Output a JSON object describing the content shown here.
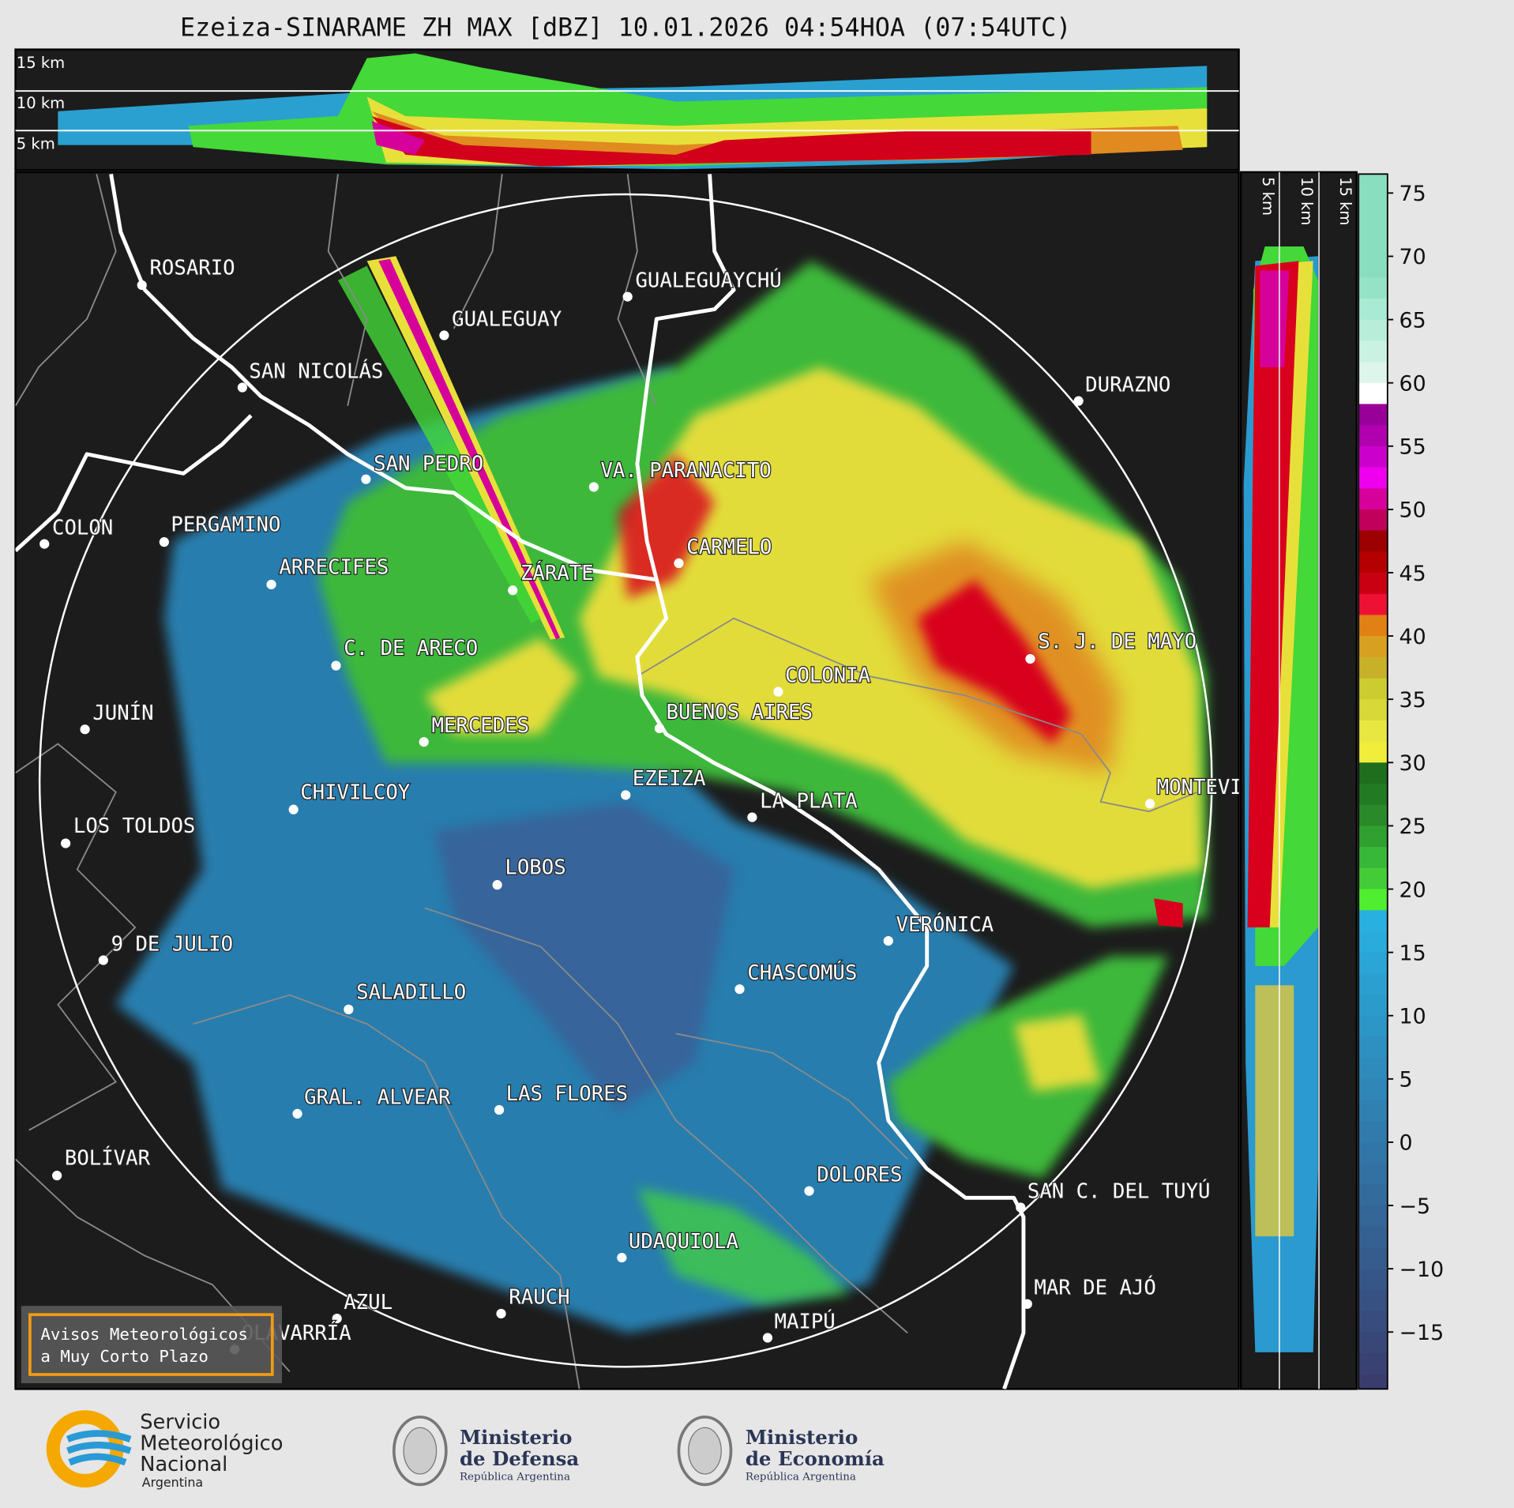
{
  "title": "Ezeiza-SINARAME ZH MAX [dBZ] 10.01.2026 04:54HOA (07:54UTC)",
  "top_panel": {
    "height_labels": [
      "15 km",
      "10 km",
      "5 km"
    ]
  },
  "side_panel": {
    "height_labels": [
      "5 km",
      "10 km",
      "15 km"
    ]
  },
  "colorbar": {
    "unit": "dBZ",
    "range": [
      -19.5,
      76.5
    ],
    "ticks": [
      "75",
      "70",
      "65",
      "60",
      "55",
      "50",
      "45",
      "40",
      "35",
      "30",
      "25",
      "20",
      "15",
      "10",
      "5",
      "0",
      "−5",
      "−10",
      "−15"
    ],
    "colors": {
      "high": [
        "#88debe",
        "#95e3c6",
        "#a8ead3",
        "#b8eed9",
        "#c9f2e2",
        "#def5ec",
        "#ffffff"
      ],
      "purple": [
        "#990099",
        "#b000b0",
        "#cc00cc",
        "#ee00ee",
        "#d6009a",
        "#c0005a"
      ],
      "red": [
        "#9c0000",
        "#b50000",
        "#c80012",
        "#ee1133",
        "#e08015",
        "#d8a020"
      ],
      "yellow": [
        "#c8b028",
        "#cccc30",
        "#d8d838",
        "#e8e640",
        "#f0ee3a"
      ],
      "green": [
        "#1e6e1e",
        "#227a22",
        "#2a8a2a",
        "#30a030",
        "#38b838",
        "#44cc38",
        "#50ee30"
      ],
      "blue_top": "#28b0e0",
      "blue_bottom": "#3b3c6e"
    }
  },
  "map": {
    "background": "#1c1c1c",
    "cities": [
      "ROSARIO",
      "GUALEGUAYCHÚ",
      "GUALEGUAY",
      "SAN NICOLÁS",
      "DURAZNO",
      "SAN PEDRO",
      "VA. PARANACITO",
      "COLON",
      "PERGAMINO",
      "CARMELO",
      "ARRECIFES",
      "ZÁRATE",
      "C. DE ARECO",
      "S. J. DE MAYO",
      "COLONIA",
      "BUENOS AIRES",
      "JUNÍN",
      "MERCEDES",
      "EZEIZA",
      "MONTEVIDEO",
      "CHIVILCOY",
      "LA PLATA",
      "LOS TOLDOS",
      "LOBOS",
      "VERÓNICA",
      "9 DE JULIO",
      "CHASCOMÚS",
      "SALADILLO",
      "GRAL. ALVEAR",
      "LAS FLORES",
      "BOLÍVAR",
      "DOLORES",
      "SAN C. DEL TUYÚ",
      "UDAQUIOLA",
      "MAR DE AJÓ",
      "RAUCH",
      "AZUL",
      "OLAVARRÍA",
      "MAIPÚ"
    ]
  },
  "alert_box": {
    "line1": "Avisos Meteorológicos",
    "line2": "a Muy Corto Plazo",
    "border_color": "#f39c12"
  },
  "logos": {
    "smn": {
      "line1": "Servicio",
      "line2": "Meteorológico",
      "line3": "Nacional",
      "line4": "Argentina"
    },
    "defensa": {
      "line1": "Ministerio",
      "line2": "de Defensa",
      "line3": "República Argentina"
    },
    "economia": {
      "line1": "Ministerio",
      "line2": "de Economía",
      "line3": "República Argentina"
    }
  }
}
